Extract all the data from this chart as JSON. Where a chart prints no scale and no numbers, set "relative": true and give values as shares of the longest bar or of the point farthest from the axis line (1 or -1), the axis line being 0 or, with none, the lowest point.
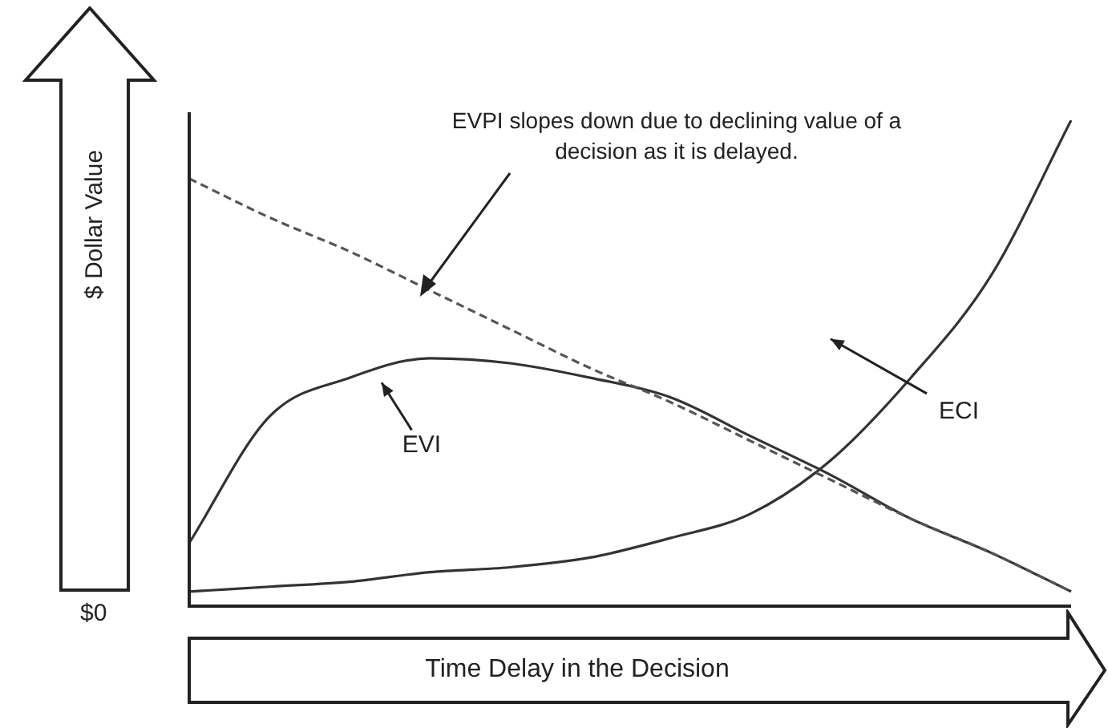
{
  "chart_data": {
    "type": "line",
    "xlabel": "Time Delay in the Decision",
    "ylabel": "$ Dollar Value",
    "relative": true,
    "legend": false,
    "marker": "none",
    "categories": [
      null,
      null,
      null,
      null,
      null,
      null,
      null,
      null,
      null,
      null,
      null,
      null
    ],
    "series": [
      {
        "color": "#555555",
        "line_style": "dashed",
        "values": [
          0.88,
          0.8,
          0.73,
          0.65,
          0.57,
          0.49,
          0.42,
          0.34,
          0.26,
          0.18,
          0.11,
          0.03
        ]
      },
      {
        "name": "EVI",
        "color": "#333333",
        "line_style": "solid",
        "values": [
          0.13,
          0.39,
          0.47,
          0.51,
          0.5,
          0.47,
          0.43,
          0.35,
          0.27,
          0.18,
          0.11,
          0.03
        ]
      },
      {
        "name": "ECI",
        "color": "#333333",
        "line_style": "solid",
        "values": [
          0.03,
          0.04,
          0.05,
          0.07,
          0.08,
          0.1,
          0.14,
          0.19,
          0.3,
          0.47,
          0.68,
          1.0
        ]
      }
    ],
    "annotations": [
      "EVPI slopes down due to declining value of a decision as it is delayed.",
      "$0"
    ]
  }
}
